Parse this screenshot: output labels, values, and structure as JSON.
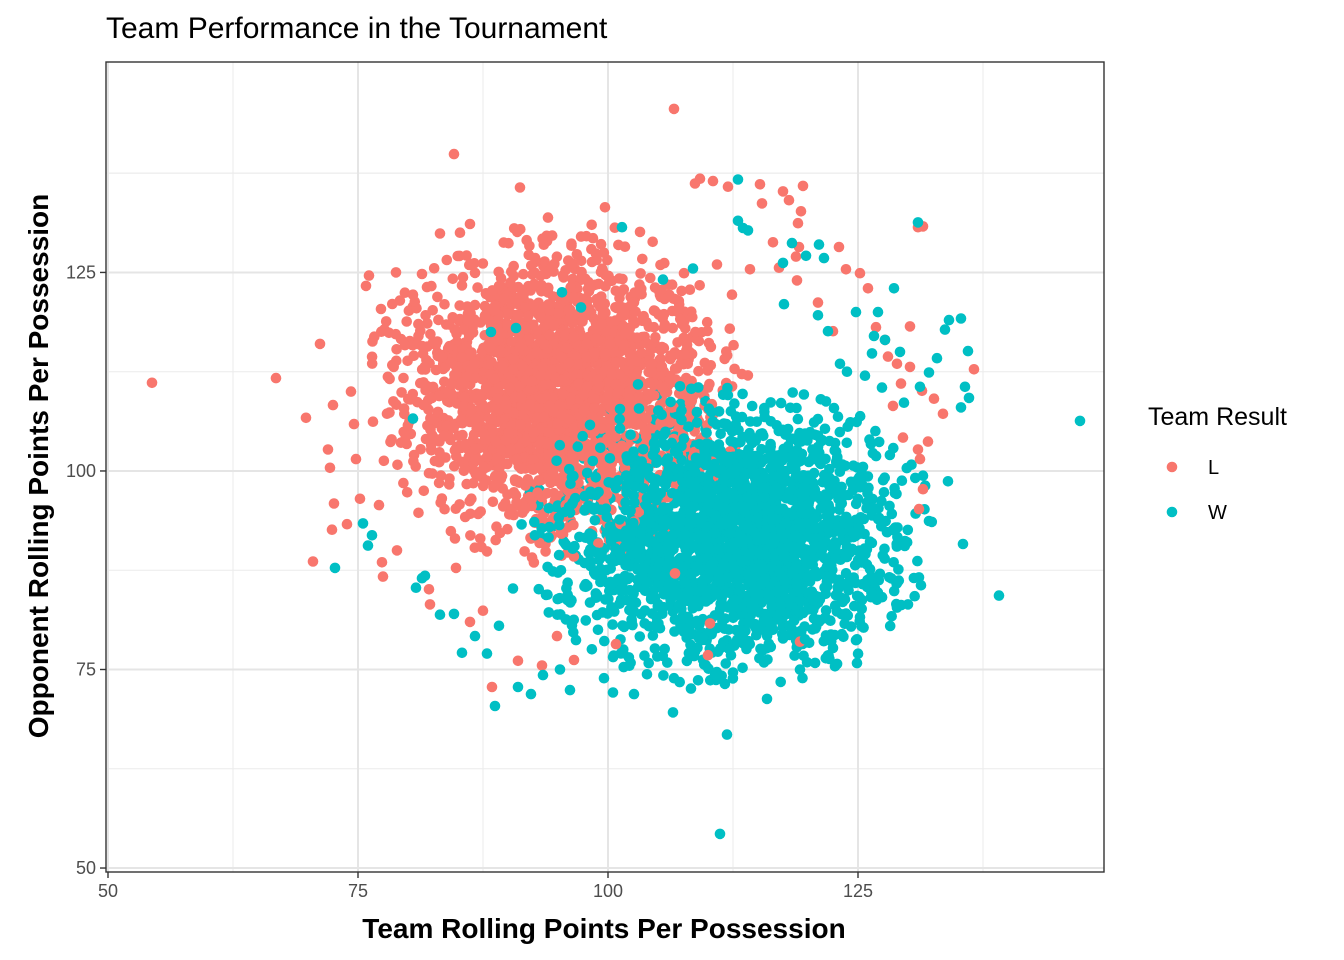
{
  "chart_data": {
    "type": "scatter",
    "title": "Team Performance in the Tournament",
    "xlabel": "Team Rolling Points Per Possession",
    "ylabel": "Opponent Rolling Points Per Possession",
    "xlim": [
      49.8,
      149.6
    ],
    "ylim": [
      49.5,
      151.5
    ],
    "x_ticks": [
      50,
      75,
      100,
      125
    ],
    "y_ticks": [
      50,
      75,
      100,
      125
    ],
    "grid": true,
    "legend": {
      "title": "Team Result",
      "position": "right",
      "entries": [
        {
          "label": "L",
          "color": "#F8766D"
        },
        {
          "label": "W",
          "color": "#00BFC4"
        }
      ]
    },
    "series": [
      {
        "name": "L",
        "color": "#F8766D",
        "cluster": {
          "center_x": 95,
          "center_y": 110,
          "sd_x": 7.5,
          "sd_y": 8.5,
          "n": 2600
        },
        "points": [
          [
            54.4,
            111.1
          ],
          [
            66.8,
            111.7
          ],
          [
            69.8,
            106.7
          ],
          [
            70.5,
            88.6
          ],
          [
            71.2,
            116.0
          ],
          [
            72.0,
            102.7
          ],
          [
            72.2,
            100.4
          ],
          [
            72.6,
            95.9
          ],
          [
            72.5,
            108.3
          ],
          [
            72.4,
            92.6
          ],
          [
            73.9,
            93.3
          ],
          [
            74.3,
            110.0
          ],
          [
            74.6,
            105.9
          ],
          [
            74.8,
            101.5
          ],
          [
            75.2,
            96.5
          ],
          [
            75.8,
            123.3
          ],
          [
            76.1,
            124.6
          ],
          [
            76.5,
            106.2
          ],
          [
            77.1,
            95.7
          ],
          [
            77.4,
            88.5
          ],
          [
            77.5,
            86.7
          ],
          [
            77.3,
            120.4
          ],
          [
            78.1,
            117.4
          ],
          [
            78.8,
            125.0
          ],
          [
            78.9,
            90.0
          ],
          [
            80.5,
            122.2
          ],
          [
            81.4,
            124.8
          ],
          [
            82.1,
            85.1
          ],
          [
            82.2,
            83.2
          ],
          [
            83.2,
            129.9
          ],
          [
            84.6,
            139.9
          ],
          [
            85.2,
            130.0
          ],
          [
            86.2,
            131.1
          ],
          [
            88.4,
            72.8
          ],
          [
            91.0,
            76.1
          ],
          [
            91.2,
            135.7
          ],
          [
            93.4,
            75.5
          ],
          [
            94.0,
            131.9
          ],
          [
            99.7,
            133.2
          ],
          [
            103.2,
            130.1
          ],
          [
            106.6,
            145.6
          ],
          [
            108.7,
            136.2
          ],
          [
            109.2,
            136.8
          ],
          [
            110.5,
            136.5
          ],
          [
            112.0,
            135.8
          ],
          [
            115.2,
            136.1
          ],
          [
            115.4,
            133.7
          ],
          [
            117.5,
            135.2
          ],
          [
            118.1,
            134.1
          ],
          [
            119.5,
            135.9
          ],
          [
            119.3,
            132.7
          ],
          [
            119.0,
            131.2
          ],
          [
            119.1,
            128.2
          ],
          [
            118.8,
            127.0
          ],
          [
            116.5,
            128.8
          ],
          [
            114.2,
            125.4
          ],
          [
            117.1,
            125.6
          ],
          [
            118.9,
            124.0
          ],
          [
            121.0,
            121.2
          ],
          [
            122.5,
            117.6
          ],
          [
            123.1,
            128.2
          ],
          [
            123.8,
            125.4
          ],
          [
            125.2,
            124.9
          ],
          [
            126.0,
            123.0
          ],
          [
            126.8,
            118.1
          ],
          [
            127.7,
            116.5
          ],
          [
            128.0,
            114.4
          ],
          [
            128.9,
            113.5
          ],
          [
            129.3,
            111.0
          ],
          [
            128.5,
            108.2
          ],
          [
            129.5,
            104.2
          ],
          [
            130.2,
            118.2
          ],
          [
            130.2,
            113.1
          ],
          [
            131.0,
            102.7
          ],
          [
            131.4,
            110.1
          ],
          [
            131.2,
            101.5
          ],
          [
            131.1,
            95.2
          ],
          [
            132.0,
            103.7
          ],
          [
            131.0,
            130.7
          ],
          [
            131.5,
            130.8
          ],
          [
            131.5,
            97.7
          ],
          [
            132.6,
            109.1
          ],
          [
            133.5,
            107.2
          ],
          [
            136.6,
            112.8
          ],
          [
            119.2,
            78.5
          ],
          [
            110.2,
            80.8
          ],
          [
            106.7,
            87.1
          ],
          [
            110.0,
            76.8
          ],
          [
            100.8,
            78.2
          ],
          [
            96.6,
            76.2
          ],
          [
            94.9,
            79.2
          ],
          [
            86.2,
            81.0
          ],
          [
            84.8,
            87.8
          ],
          [
            87.5,
            82.4
          ],
          [
            107.6,
            124.9
          ],
          [
            110.9,
            126.0
          ],
          [
            112.4,
            122.2
          ],
          [
            100.2,
            116.0
          ],
          [
            96.1,
            113.6
          ],
          [
            104.6,
            120.2
          ]
        ]
      },
      {
        "name": "W",
        "color": "#00BFC4",
        "cluster": {
          "center_x": 112,
          "center_y": 92,
          "sd_x": 8.0,
          "sd_y": 7.5,
          "n": 2600
        },
        "points": [
          [
            72.7,
            87.8
          ],
          [
            75.5,
            93.4
          ],
          [
            76.0,
            90.6
          ],
          [
            76.4,
            91.9
          ],
          [
            80.5,
            106.6
          ],
          [
            80.8,
            85.3
          ],
          [
            81.4,
            86.5
          ],
          [
            81.7,
            86.8
          ],
          [
            83.2,
            81.9
          ],
          [
            84.6,
            82.0
          ],
          [
            85.4,
            77.1
          ],
          [
            86.7,
            79.2
          ],
          [
            87.9,
            77.0
          ],
          [
            88.7,
            70.4
          ],
          [
            89.1,
            80.5
          ],
          [
            90.5,
            85.2
          ],
          [
            91.0,
            72.8
          ],
          [
            92.3,
            71.9
          ],
          [
            93.5,
            74.3
          ],
          [
            95.2,
            75.0
          ],
          [
            96.2,
            72.4
          ],
          [
            96.8,
            78.7
          ],
          [
            99.6,
            73.9
          ],
          [
            100.5,
            72.1
          ],
          [
            102.6,
            71.9
          ],
          [
            103.9,
            74.4
          ],
          [
            106.5,
            69.6
          ],
          [
            108.3,
            72.6
          ],
          [
            110.7,
            74.3
          ],
          [
            111.9,
            66.8
          ],
          [
            111.2,
            54.3
          ],
          [
            115.9,
            71.3
          ],
          [
            115.6,
            75.9
          ],
          [
            119.7,
            78.8
          ],
          [
            122.3,
            79.4
          ],
          [
            122.7,
            75.4
          ],
          [
            124.9,
            75.8
          ],
          [
            124.9,
            78.8
          ],
          [
            125.2,
            81.6
          ],
          [
            126.3,
            84.1
          ],
          [
            128.9,
            82.8
          ],
          [
            130.0,
            83.2
          ],
          [
            131.3,
            85.6
          ],
          [
            132.1,
            93.7
          ],
          [
            131.5,
            99.4
          ],
          [
            134.0,
            98.7
          ],
          [
            135.5,
            90.8
          ],
          [
            139.1,
            84.3
          ],
          [
            147.2,
            106.3
          ],
          [
            135.3,
            108.0
          ],
          [
            135.7,
            110.6
          ],
          [
            136.1,
            109.2
          ],
          [
            136.0,
            115.1
          ],
          [
            135.3,
            119.2
          ],
          [
            134.1,
            119.0
          ],
          [
            133.7,
            117.8
          ],
          [
            132.9,
            114.2
          ],
          [
            132.1,
            112.4
          ],
          [
            131.2,
            110.6
          ],
          [
            129.6,
            108.6
          ],
          [
            128.6,
            123.0
          ],
          [
            127.0,
            120.0
          ],
          [
            126.6,
            117.0
          ],
          [
            127.7,
            116.5
          ],
          [
            125.7,
            112.0
          ],
          [
            123.9,
            112.5
          ],
          [
            123.2,
            113.5
          ],
          [
            122.0,
            117.6
          ],
          [
            121.6,
            126.8
          ],
          [
            121.1,
            128.5
          ],
          [
            119.8,
            127.1
          ],
          [
            118.4,
            128.7
          ],
          [
            117.5,
            126.2
          ],
          [
            114.0,
            130.3
          ],
          [
            113.5,
            130.6
          ],
          [
            113.0,
            136.7
          ],
          [
            113.0,
            131.5
          ],
          [
            131.0,
            131.3
          ],
          [
            108.5,
            125.5
          ],
          [
            105.5,
            124.1
          ],
          [
            101.4,
            130.7
          ],
          [
            97.3,
            120.6
          ],
          [
            95.4,
            122.5
          ],
          [
            90.8,
            118.0
          ],
          [
            88.3,
            117.5
          ],
          [
            98.2,
            105.8
          ],
          [
            103.0,
            110.9
          ],
          [
            108.2,
            98.5
          ],
          [
            117.6,
            121.0
          ],
          [
            121.0,
            119.6
          ],
          [
            124.8,
            120.0
          ],
          [
            126.4,
            114.8
          ],
          [
            129.2,
            115.0
          ],
          [
            127.4,
            110.5
          ],
          [
            105.2,
            80.2
          ],
          [
            99.0,
            80.0
          ],
          [
            93.8,
            84.4
          ],
          [
            114.7,
            80.7
          ],
          [
            117.0,
            81.3
          ],
          [
            120.3,
            84.7
          ]
        ]
      }
    ]
  }
}
